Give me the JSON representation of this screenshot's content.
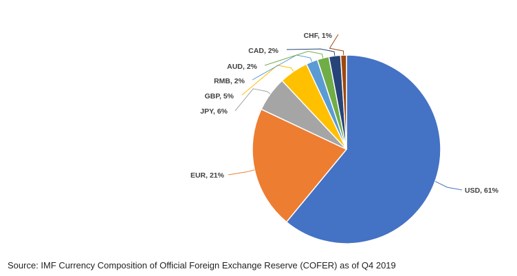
{
  "chart_data": {
    "type": "pie",
    "title": "",
    "categories": [
      "USD",
      "EUR",
      "JPY",
      "GBP",
      "RMB",
      "AUD",
      "CAD",
      "CHF"
    ],
    "values": [
      61,
      21,
      6,
      5,
      2,
      2,
      2,
      1
    ],
    "data_labels": [
      "USD, 61%",
      "EUR, 21%",
      "JPY, 6%",
      "GBP, 5%",
      "RMB, 2%",
      "AUD, 2%",
      "CAD, 2%",
      "CHF, 1%"
    ],
    "colors": [
      "#4472C4",
      "#ED7D31",
      "#A5A5A5",
      "#FFC000",
      "#5B9BD5",
      "#70AD47",
      "#264478",
      "#9E480E"
    ],
    "legend": "none",
    "label_style": "outside-with-leader-lines"
  },
  "source_note": "Source: IMF Currency Composition of Official Foreign Exchange Reserve (COFER) as of Q4 2019"
}
